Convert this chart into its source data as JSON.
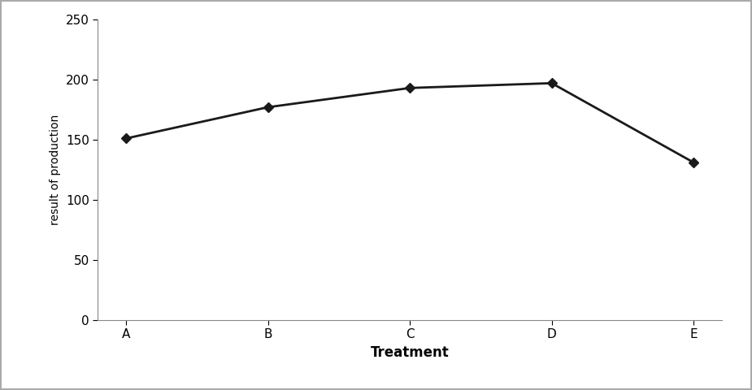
{
  "categories": [
    "A",
    "B",
    "C",
    "D",
    "E"
  ],
  "values": [
    151,
    177,
    193,
    197,
    131
  ],
  "xlabel": "Treatment",
  "ylabel": "result of production",
  "ylim": [
    0,
    250
  ],
  "yticks": [
    0,
    50,
    100,
    150,
    200,
    250
  ],
  "line_color": "#1a1a1a",
  "marker": "D",
  "marker_size": 6,
  "marker_color": "#1a1a1a",
  "line_width": 2.0,
  "xlabel_fontsize": 12,
  "ylabel_fontsize": 10,
  "tick_fontsize": 11,
  "xlabel_fontweight": "bold",
  "background_color": "#ffffff",
  "plot_bg_color": "#ffffff",
  "figure_border_color": "#aaaaaa"
}
